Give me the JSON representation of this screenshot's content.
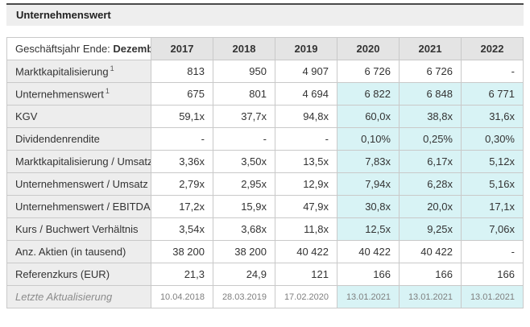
{
  "section": {
    "title": "Unternehmenswert"
  },
  "table": {
    "header": {
      "label_prefix": "Geschäftsjahr Ende: ",
      "label_bold": "Dezember",
      "columns": [
        "2017",
        "2018",
        "2019",
        "2020",
        "2021",
        "2022"
      ]
    },
    "highlight_columns": [
      "2020",
      "2021",
      "2022"
    ],
    "highlight_color": "#d8f3f5",
    "rows": [
      {
        "label": "Marktkapitalisierung",
        "sup": "1",
        "highlight": false,
        "muted": false,
        "values": [
          "813",
          "950",
          "4 907",
          "6 726",
          "6 726",
          "-"
        ]
      },
      {
        "label": "Unternehmenswert",
        "sup": "1",
        "highlight": true,
        "muted": false,
        "values": [
          "675",
          "801",
          "4 694",
          "6 822",
          "6 848",
          "6 771"
        ]
      },
      {
        "label": "KGV",
        "sup": "",
        "highlight": true,
        "muted": false,
        "values": [
          "59,1x",
          "37,7x",
          "94,8x",
          "60,0x",
          "38,8x",
          "31,6x"
        ]
      },
      {
        "label": "Dividendenrendite",
        "sup": "",
        "highlight": true,
        "muted": false,
        "values": [
          "-",
          "-",
          "-",
          "0,10%",
          "0,25%",
          "0,30%"
        ]
      },
      {
        "label": "Marktkapitalisierung / Umsatz",
        "sup": "",
        "highlight": true,
        "muted": false,
        "values": [
          "3,36x",
          "3,50x",
          "13,5x",
          "7,83x",
          "6,17x",
          "5,12x"
        ]
      },
      {
        "label": "Unternehmenswert / Umsatz",
        "sup": "",
        "highlight": true,
        "muted": false,
        "values": [
          "2,79x",
          "2,95x",
          "12,9x",
          "7,94x",
          "6,28x",
          "5,16x"
        ]
      },
      {
        "label": "Unternehmenswert / EBITDA",
        "sup": "",
        "highlight": true,
        "muted": false,
        "values": [
          "17,2x",
          "15,9x",
          "47,9x",
          "30,8x",
          "20,0x",
          "17,1x"
        ]
      },
      {
        "label": "Kurs / Buchwert Verhältnis",
        "sup": "",
        "highlight": true,
        "muted": false,
        "values": [
          "3,54x",
          "3,68x",
          "11,8x",
          "12,5x",
          "9,25x",
          "7,06x"
        ]
      },
      {
        "label": "Anz. Aktien (in tausend)",
        "sup": "",
        "highlight": false,
        "muted": false,
        "values": [
          "38 200",
          "38 200",
          "40 422",
          "40 422",
          "40 422",
          "-"
        ]
      },
      {
        "label": "Referenzkurs (EUR)",
        "sup": "",
        "highlight": false,
        "muted": false,
        "values": [
          "21,3",
          "24,9",
          "121",
          "166",
          "166",
          "166"
        ]
      },
      {
        "label": "Letzte Aktualisierung",
        "sup": "",
        "highlight": true,
        "muted": true,
        "values": [
          "10.04.2018",
          "28.03.2019",
          "17.02.2020",
          "13.01.2021",
          "13.01.2021",
          "13.01.2021"
        ]
      }
    ]
  }
}
